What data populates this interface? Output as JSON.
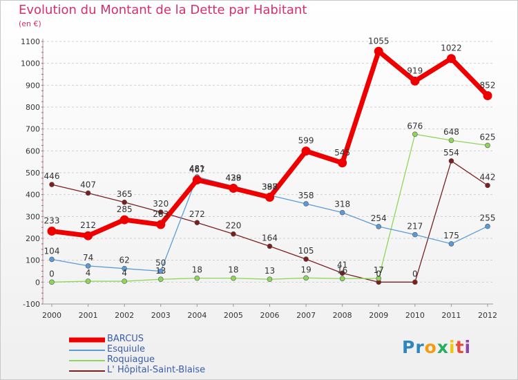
{
  "title": "Evolution du Montant de la Dette par Habitant",
  "subtitle": "(en €)",
  "logo": {
    "letters": [
      {
        "ch": "P",
        "color": "#2e86c1"
      },
      {
        "ch": "r",
        "color": "#2e86c1"
      },
      {
        "ch": "o",
        "color": "#f39c12"
      },
      {
        "ch": "x",
        "color": "#27ae60"
      },
      {
        "ch": "i",
        "color": "#f1c40f"
      },
      {
        "ch": "t",
        "color": "#e74c3c"
      },
      {
        "ch": "i",
        "color": "#8e44ad"
      }
    ]
  },
  "chart_data": {
    "type": "line",
    "x": [
      "2000",
      "2001",
      "2002",
      "2003",
      "2004",
      "2005",
      "2006",
      "2007",
      "2008",
      "2009",
      "2010",
      "2011",
      "2012"
    ],
    "yticks": [
      "-100",
      "0",
      "100",
      "200",
      "300",
      "400",
      "500",
      "600",
      "700",
      "800",
      "900",
      "1000",
      "1100"
    ],
    "ylim": [
      -100,
      1100
    ],
    "grid": "horizontal dashed",
    "series": [
      {
        "name": "L' Hôpital-Saint-Blaise",
        "color": "#7a1f1f",
        "width": 1.3,
        "marker": 3.5,
        "values": [
          446,
          407,
          365,
          320,
          272,
          220,
          164,
          105,
          41,
          0,
          0,
          554,
          442
        ],
        "labels": [
          "446",
          "407",
          "365",
          "320",
          "272",
          "220",
          "164",
          "105",
          "41",
          "0",
          "0",
          "554",
          "442"
        ]
      },
      {
        "name": "Roquiague",
        "color": "#8ed65a",
        "width": 1.3,
        "marker": 3.5,
        "values": [
          0,
          4,
          4,
          13,
          18,
          18,
          13,
          19,
          16,
          17,
          676,
          648,
          625
        ],
        "labels": [
          "0",
          "4",
          "4",
          "13",
          "18",
          "18",
          "13",
          "19",
          "16",
          "17",
          "676",
          "648",
          "625"
        ]
      },
      {
        "name": "Esquiule",
        "color": "#5b9bd5",
        "width": 1.3,
        "marker": 3.5,
        "values": [
          104,
          74,
          62,
          50,
          481,
          438,
          397,
          358,
          318,
          254,
          217,
          175,
          255
        ],
        "labels": [
          "104",
          "74",
          "62",
          "50",
          "481",
          "438",
          "397",
          "358",
          "318",
          "254",
          "217",
          "175",
          "255"
        ]
      },
      {
        "name": "BARCUS",
        "color": "#ee0000",
        "width": 7,
        "marker": 6.5,
        "values": [
          233,
          212,
          285,
          263,
          467,
          429,
          388,
          599,
          545,
          1055,
          919,
          1022,
          852
        ],
        "labels": [
          "233",
          "212",
          "285",
          "263",
          "467",
          "429",
          "388",
          "599",
          "545",
          "1055",
          "919",
          "1022",
          "852"
        ]
      }
    ],
    "legend": [
      {
        "name": "BARCUS",
        "color": "#ee0000",
        "thickness": 7
      },
      {
        "name": "Esquiule",
        "color": "#5b9bd5",
        "thickness": 2
      },
      {
        "name": "Roquiague",
        "color": "#8ed65a",
        "thickness": 2
      },
      {
        "name": "L' Hôpital-Saint-Blaise",
        "color": "#7a1f1f",
        "thickness": 2
      }
    ]
  }
}
